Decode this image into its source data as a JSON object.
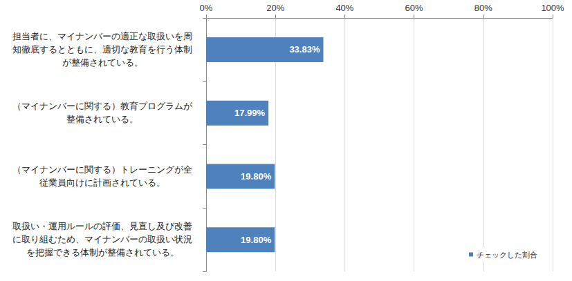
{
  "chart_data": {
    "type": "bar",
    "orientation": "horizontal",
    "categories": [
      "担当者に、マイナンバーの適正な取扱いを周知徹底するとともに、適切な教育を行う体制が整備されている。",
      "（マイナンバーに関する）教育プログラムが整備されている。",
      "（マイナンバーに関する）トレーニングが全従業員向けに計画されている。",
      "取扱い・運用ルールの評価、見直し及び改善に取り組むため、マイナンバーの取扱い状況を把握できる体制が整備されている。"
    ],
    "series": [
      {
        "name": "チェックした割合",
        "color": "#4f81bd",
        "values": [
          33.83,
          17.99,
          19.8,
          19.8
        ],
        "value_labels": [
          "33.83%",
          "17.99%",
          "19.80%",
          "19.80%"
        ]
      }
    ],
    "xlim": [
      0,
      100
    ],
    "xticks": [
      {
        "value": 0,
        "label": "0%"
      },
      {
        "value": 20,
        "label": "20%"
      },
      {
        "value": 40,
        "label": "40%"
      },
      {
        "value": 60,
        "label": "60%"
      },
      {
        "value": 80,
        "label": "80%"
      },
      {
        "value": 100,
        "label": "100%"
      }
    ],
    "grid": true,
    "data_labels": true,
    "legend": "lower right"
  }
}
